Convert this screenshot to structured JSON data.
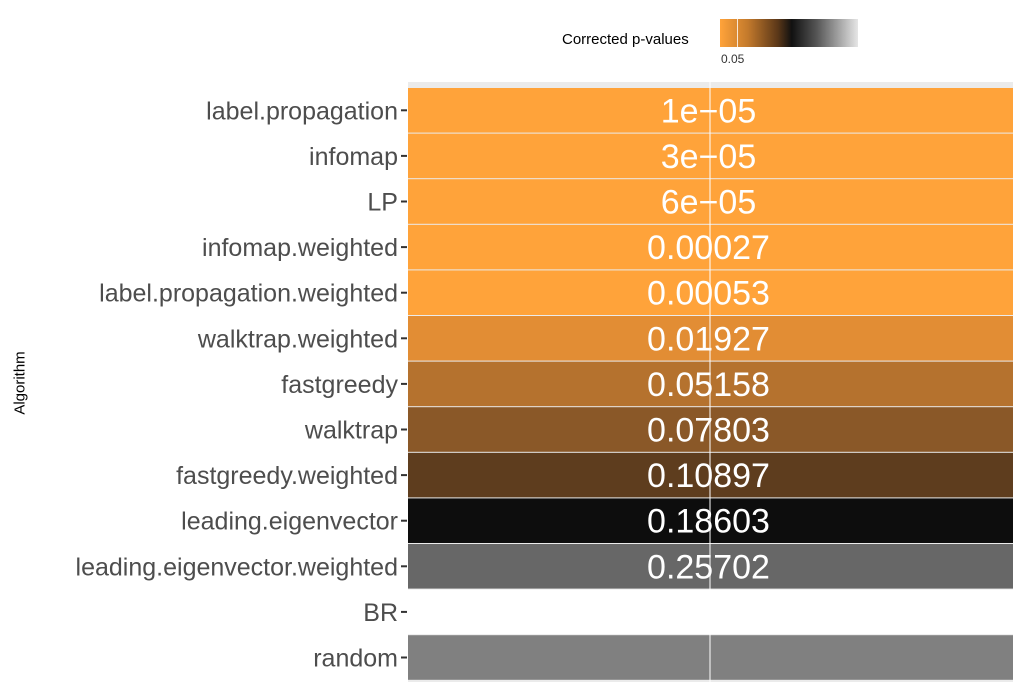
{
  "legend": {
    "title": "Corrected p-values",
    "tick_label": "0.05"
  },
  "chart_data": {
    "type": "heatmap",
    "ylabel": "Algorithm",
    "legend_title": "Corrected p-values",
    "legend_ticks": [
      "0.05"
    ],
    "rows": [
      {
        "category": "label.propagation",
        "label": "1e−05",
        "value": 1e-05,
        "color": "#ffa33a"
      },
      {
        "category": "infomap",
        "label": "3e−05",
        "value": 3e-05,
        "color": "#ffa33a"
      },
      {
        "category": "LP",
        "label": "6e−05",
        "value": 6e-05,
        "color": "#ffa33a"
      },
      {
        "category": "infomap.weighted",
        "label": "0.00027",
        "value": 0.00027,
        "color": "#ffa33a"
      },
      {
        "category": "label.propagation.weighted",
        "label": "0.00053",
        "value": 0.00053,
        "color": "#ffa33a"
      },
      {
        "category": "walktrap.weighted",
        "label": "0.01927",
        "value": 0.01927,
        "color": "#e28d34"
      },
      {
        "category": "fastgreedy",
        "label": "0.05158",
        "value": 0.05158,
        "color": "#b5722e"
      },
      {
        "category": "walktrap",
        "label": "0.07803",
        "value": 0.07803,
        "color": "#8a5828"
      },
      {
        "category": "fastgreedy.weighted",
        "label": "0.10897",
        "value": 0.10897,
        "color": "#5e3d1e"
      },
      {
        "category": "leading.eigenvector",
        "label": "0.18603",
        "value": 0.18603,
        "color": "#0d0d0d"
      },
      {
        "category": "leading.eigenvector.weighted",
        "label": "0.25702",
        "value": 0.25702,
        "color": "#676767"
      },
      {
        "category": "BR",
        "label": "",
        "value": null,
        "color": "#ffffff"
      },
      {
        "category": "random",
        "label": "",
        "value": null,
        "color": "#808080"
      }
    ],
    "grid": true,
    "legend_position": "top"
  }
}
